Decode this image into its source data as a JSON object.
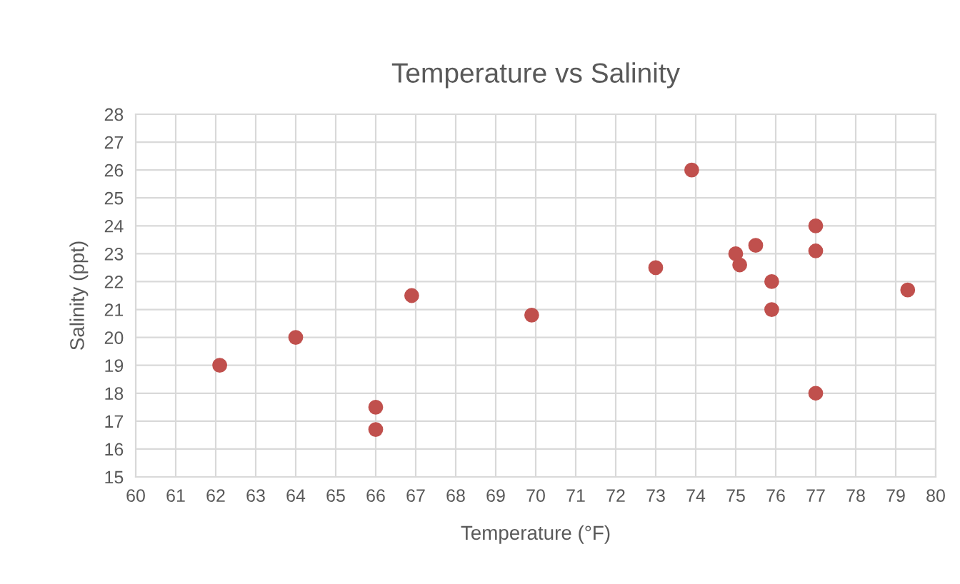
{
  "chart_data": {
    "type": "scatter",
    "title": "Temperature vs Salinity",
    "xlabel": "Temperature (°F)",
    "ylabel": "Salinity (ppt)",
    "x": [
      62.1,
      64,
      66,
      66,
      66.9,
      69.9,
      73,
      73.9,
      75,
      75.1,
      75.5,
      75.9,
      75.9,
      77,
      77,
      77,
      79.3
    ],
    "series": [
      {
        "color": "#c0504d",
        "values": [
          19.0,
          20.0,
          17.5,
          16.7,
          21.5,
          20.8,
          22.5,
          26.0,
          23.0,
          22.6,
          23.3,
          22.0,
          21.0,
          24.0,
          23.1,
          18.0,
          21.7
        ]
      }
    ],
    "xlim": [
      60,
      80
    ],
    "xticks": [
      60,
      61,
      62,
      63,
      64,
      65,
      66,
      67,
      68,
      69,
      70,
      71,
      72,
      73,
      74,
      75,
      76,
      77,
      78,
      79,
      80
    ],
    "ylim": [
      15,
      28
    ],
    "yticks": [
      15,
      16,
      17,
      18,
      19,
      20,
      21,
      22,
      23,
      24,
      25,
      26,
      27,
      28
    ],
    "grid": true,
    "marker": "circle",
    "legend": false
  }
}
